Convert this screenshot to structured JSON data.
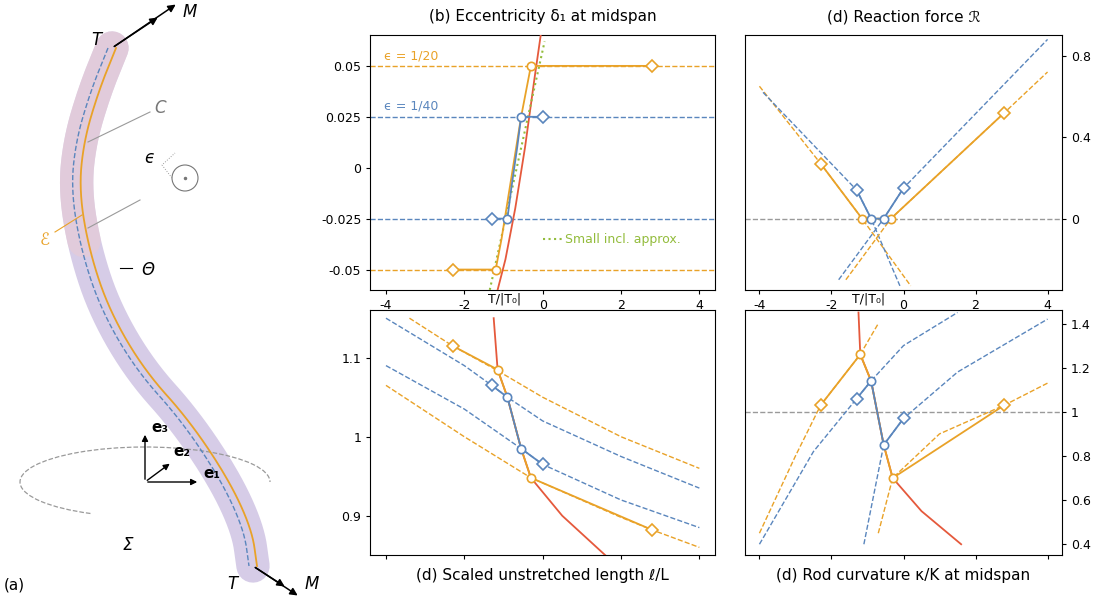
{
  "diagram": {
    "label": "(a)",
    "tension": "T",
    "moment": "M",
    "centerline": "C",
    "eccentricity": "ϵ",
    "inclusion": "ℰ",
    "angle": "Θ",
    "basis": [
      "e₁",
      "e₂",
      "e₃"
    ],
    "plane": "Σ"
  },
  "chart_data": [
    {
      "type": "line",
      "title": "(b) Eccentricity δ₁ at midspan",
      "xlabel": "T/|T₀|",
      "xlim": [
        -4.4,
        4.4
      ],
      "ylim": [
        -0.06,
        0.065
      ],
      "xticks": [
        -4,
        -2,
        0,
        2,
        4
      ],
      "yticks": [
        -0.05,
        -0.025,
        0,
        0.025,
        0.05
      ],
      "grid": false,
      "annotations": [
        {
          "text": "ϵ = 1/20",
          "color": "#E9A228"
        },
        {
          "text": "ϵ = 1/40",
          "color": "#5A86BD"
        },
        {
          "text": "Small incl. approx.",
          "color": "#93BC3C"
        }
      ],
      "series": [
        {
          "color": "#E9A228",
          "line_style": "dashed",
          "x": [
            -4.4,
            4.4
          ],
          "values": [
            0.05,
            0.05
          ]
        },
        {
          "color": "#E9A228",
          "line_style": "dashed",
          "x": [
            -4.4,
            4.4
          ],
          "values": [
            -0.05,
            -0.05
          ]
        },
        {
          "color": "#5A86BD",
          "line_style": "dashed",
          "x": [
            -4.4,
            4.4
          ],
          "values": [
            0.025,
            0.025
          ]
        },
        {
          "color": "#5A86BD",
          "line_style": "dashed",
          "x": [
            -4.4,
            4.4
          ],
          "values": [
            -0.025,
            -0.025
          ]
        },
        {
          "color": "#E5593C",
          "line_style": "solid",
          "x": [
            -1.15,
            -0.95,
            -0.7,
            -0.45,
            -0.2,
            -0.05
          ],
          "values": [
            -0.06,
            -0.045,
            -0.02,
            0.01,
            0.045,
            0.065
          ]
        },
        {
          "color": "#93BC3C",
          "line_style": "dotted",
          "x": [
            -1.35,
            0.05
          ],
          "values": [
            -0.06,
            0.062
          ]
        },
        {
          "color": "#E9A228",
          "line_style": "solid",
          "x": [
            -2.3,
            -1.2,
            -1.05,
            -0.8,
            -0.55,
            -0.3,
            2.8
          ],
          "values": [
            -0.05,
            -0.05,
            -0.035,
            -0.005,
            0.025,
            0.05,
            0.05
          ]
        },
        {
          "color": "#5A86BD",
          "line_style": "solid",
          "x": [
            -1.3,
            -0.9,
            -0.8,
            -0.65,
            -0.55,
            0
          ],
          "values": [
            -0.025,
            -0.025,
            -0.01,
            0.01,
            0.025,
            0.025
          ]
        },
        {
          "type": "scatter",
          "marker": "circle",
          "color": "#E9A228",
          "x": [
            -1.2,
            -0.3
          ],
          "values": [
            -0.05,
            0.05
          ]
        },
        {
          "type": "scatter",
          "marker": "circle",
          "color": "#5A86BD",
          "x": [
            -0.9,
            -0.55
          ],
          "values": [
            -0.025,
            0.025
          ]
        },
        {
          "type": "scatter",
          "marker": "diamond",
          "color": "#E9A228",
          "x": [
            -2.3,
            2.8
          ],
          "values": [
            -0.05,
            0.05
          ]
        },
        {
          "type": "scatter",
          "marker": "diamond",
          "color": "#5A86BD",
          "x": [
            -1.3,
            0
          ],
          "values": [
            -0.025,
            0.025
          ]
        }
      ]
    },
    {
      "type": "line",
      "title": "(d) Reaction force ℛ",
      "xlabel": "T/|T₀|",
      "xlim": [
        -4.4,
        4.4
      ],
      "ylim": [
        -0.35,
        0.9
      ],
      "xticks": [
        -4,
        -2,
        0,
        2,
        4
      ],
      "yticks": [
        0,
        0.4,
        0.8
      ],
      "grid": false,
      "series": [
        {
          "color": "#9A9A9A",
          "line_style": "dashed",
          "x": [
            -4.4,
            4.4
          ],
          "values": [
            0,
            0
          ]
        },
        {
          "color": "#E9A228",
          "line_style": "dashed",
          "x": [
            -4,
            -2.3,
            -1.15,
            0.2
          ],
          "values": [
            0.65,
            0.27,
            0,
            -0.33
          ]
        },
        {
          "color": "#5A86BD",
          "line_style": "dashed",
          "x": [
            -3.9,
            -1.3,
            -0.9,
            -0.1
          ],
          "values": [
            0.62,
            0.14,
            0,
            -0.33
          ]
        },
        {
          "color": "#E9A228",
          "line_style": "dashed",
          "x": [
            -1.6,
            -0.35,
            2.8,
            4
          ],
          "values": [
            -0.3,
            0,
            0.52,
            0.72
          ]
        },
        {
          "color": "#5A86BD",
          "line_style": "dashed",
          "x": [
            -1.8,
            -0.55,
            0,
            4
          ],
          "values": [
            -0.3,
            0,
            0.15,
            0.88
          ]
        },
        {
          "color": "#E9A228",
          "line_style": "solid",
          "x": [
            -2.3,
            -1.15,
            -0.35,
            2.8
          ],
          "values": [
            0.27,
            0,
            0,
            0.52
          ]
        },
        {
          "color": "#5A86BD",
          "line_style": "solid",
          "x": [
            -1.3,
            -0.9,
            -0.55,
            0
          ],
          "values": [
            0.14,
            0,
            0,
            0.15
          ]
        },
        {
          "type": "scatter",
          "marker": "circle",
          "color": "#E9A228",
          "x": [
            -1.15,
            -0.35
          ],
          "values": [
            0,
            0
          ]
        },
        {
          "type": "scatter",
          "marker": "circle",
          "color": "#5A86BD",
          "x": [
            -0.9,
            -0.55
          ],
          "values": [
            0,
            0
          ]
        },
        {
          "type": "scatter",
          "marker": "diamond",
          "color": "#E9A228",
          "x": [
            -2.3,
            2.8
          ],
          "values": [
            0.27,
            0.52
          ]
        },
        {
          "type": "scatter",
          "marker": "diamond",
          "color": "#5A86BD",
          "x": [
            -1.3,
            0
          ],
          "values": [
            0.14,
            0.15
          ]
        }
      ]
    },
    {
      "type": "line",
      "title": "(d) Scaled unstretched length ℓ/L",
      "tick_labels": "y",
      "xlim": [
        -4.4,
        4.4
      ],
      "ylim": [
        0.85,
        1.16
      ],
      "xticks": [
        -4,
        -2,
        0,
        2,
        4
      ],
      "yticks": [
        0.9,
        1,
        1.1
      ],
      "grid": false,
      "series": [
        {
          "color": "#E9A228",
          "line_style": "dashed",
          "x": [
            -3.4,
            -2.3,
            -1.2,
            0,
            2,
            4
          ],
          "values": [
            1.15,
            1.115,
            1.085,
            1.05,
            1.0,
            0.96
          ]
        },
        {
          "color": "#5A86BD",
          "line_style": "dashed",
          "x": [
            -4,
            -2,
            -1.3,
            -0.9,
            0,
            2,
            4
          ],
          "values": [
            1.15,
            1.09,
            1.065,
            1.05,
            1.02,
            0.975,
            0.935
          ]
        },
        {
          "color": "#5A86BD",
          "line_style": "dashed",
          "x": [
            -4,
            -2,
            -0.55,
            0,
            2,
            4
          ],
          "values": [
            1.09,
            1.035,
            0.985,
            0.965,
            0.92,
            0.885
          ]
        },
        {
          "color": "#E9A228",
          "line_style": "dashed",
          "x": [
            -4,
            -2,
            -0.3,
            2,
            2.8,
            4
          ],
          "values": [
            1.065,
            1.0,
            0.948,
            0.898,
            0.882,
            0.86
          ]
        },
        {
          "color": "#E5593C",
          "line_style": "solid",
          "x": [
            -1.25,
            -1.15,
            -0.9,
            -0.55,
            -0.3,
            0.5,
            1.6
          ],
          "values": [
            1.15,
            1.085,
            1.05,
            0.985,
            0.948,
            0.9,
            0.85
          ]
        },
        {
          "color": "#E9A228",
          "line_style": "solid",
          "x": [
            -2.3,
            -1.15,
            -0.9,
            -0.55,
            -0.3,
            2.8
          ],
          "values": [
            1.115,
            1.085,
            1.05,
            0.985,
            0.948,
            0.882
          ]
        },
        {
          "color": "#5A86BD",
          "line_style": "solid",
          "x": [
            -1.3,
            -0.9,
            -0.55,
            0
          ],
          "values": [
            1.065,
            1.05,
            0.985,
            0.965
          ]
        },
        {
          "type": "scatter",
          "marker": "circle",
          "color": "#E9A228",
          "x": [
            -1.15,
            -0.3
          ],
          "values": [
            1.085,
            0.948
          ]
        },
        {
          "type": "scatter",
          "marker": "circle",
          "color": "#5A86BD",
          "x": [
            -0.9,
            -0.55
          ],
          "values": [
            1.05,
            0.985
          ]
        },
        {
          "type": "scatter",
          "marker": "diamond",
          "color": "#E9A228",
          "x": [
            -2.3,
            2.8
          ],
          "values": [
            1.115,
            0.882
          ]
        },
        {
          "type": "scatter",
          "marker": "diamond",
          "color": "#5A86BD",
          "x": [
            -1.3,
            0
          ],
          "values": [
            1.065,
            0.965
          ]
        }
      ]
    },
    {
      "type": "line",
      "title": "(d) Rod curvature κ/K at midspan",
      "tick_labels": "y",
      "xlim": [
        -4.4,
        4.4
      ],
      "ylim": [
        0.35,
        1.46
      ],
      "xticks": [
        -4,
        -2,
        0,
        2,
        4
      ],
      "yticks": [
        0.4,
        0.6,
        0.8,
        1,
        1.2,
        1.4
      ],
      "grid": false,
      "series": [
        {
          "color": "#9A9A9A",
          "line_style": "dashed",
          "x": [
            -4.4,
            4.4
          ],
          "values": [
            1,
            1
          ]
        },
        {
          "color": "#E9A228",
          "line_style": "dashed",
          "x": [
            -4,
            -3,
            -2.3,
            -1.2,
            -0.7
          ],
          "values": [
            0.45,
            0.8,
            1.03,
            1.26,
            1.4
          ]
        },
        {
          "color": "#5A86BD",
          "line_style": "dashed",
          "x": [
            -4,
            -2.5,
            -1.3,
            -0.9,
            0,
            1.5
          ],
          "values": [
            0.4,
            0.82,
            1.06,
            1.14,
            1.3,
            1.45
          ]
        },
        {
          "color": "#5A86BD",
          "line_style": "dashed",
          "x": [
            -1.1,
            -0.55,
            0,
            1.5,
            4
          ],
          "values": [
            0.4,
            0.85,
            0.97,
            1.18,
            1.42
          ]
        },
        {
          "color": "#E9A228",
          "line_style": "dashed",
          "x": [
            -0.7,
            -0.3,
            1,
            2.8,
            4
          ],
          "values": [
            0.45,
            0.7,
            0.9,
            1.03,
            1.13
          ]
        },
        {
          "color": "#E5593C",
          "line_style": "solid",
          "x": [
            -1.25,
            -1.2,
            -0.9,
            -0.55,
            -0.3,
            0.5,
            1.6
          ],
          "values": [
            1.45,
            1.26,
            1.14,
            0.85,
            0.7,
            0.55,
            0.4
          ]
        },
        {
          "color": "#E9A228",
          "line_style": "solid",
          "x": [
            -2.3,
            -1.2,
            -0.9,
            -0.55,
            -0.3,
            2.8
          ],
          "values": [
            1.03,
            1.26,
            1.14,
            0.85,
            0.7,
            1.03
          ]
        },
        {
          "color": "#5A86BD",
          "line_style": "solid",
          "x": [
            -1.3,
            -0.9,
            -0.55,
            0
          ],
          "values": [
            1.06,
            1.14,
            0.85,
            0.97
          ]
        },
        {
          "type": "scatter",
          "marker": "circle",
          "color": "#E9A228",
          "x": [
            -1.2,
            -0.3
          ],
          "values": [
            1.26,
            0.7
          ]
        },
        {
          "type": "scatter",
          "marker": "circle",
          "color": "#5A86BD",
          "x": [
            -0.9,
            -0.55
          ],
          "values": [
            1.14,
            0.85
          ]
        },
        {
          "type": "scatter",
          "marker": "diamond",
          "color": "#E9A228",
          "x": [
            -2.3,
            2.8
          ],
          "values": [
            1.03,
            1.03
          ]
        },
        {
          "type": "scatter",
          "marker": "diamond",
          "color": "#5A86BD",
          "x": [
            -1.3,
            0
          ],
          "values": [
            1.06,
            0.97
          ]
        }
      ]
    }
  ]
}
